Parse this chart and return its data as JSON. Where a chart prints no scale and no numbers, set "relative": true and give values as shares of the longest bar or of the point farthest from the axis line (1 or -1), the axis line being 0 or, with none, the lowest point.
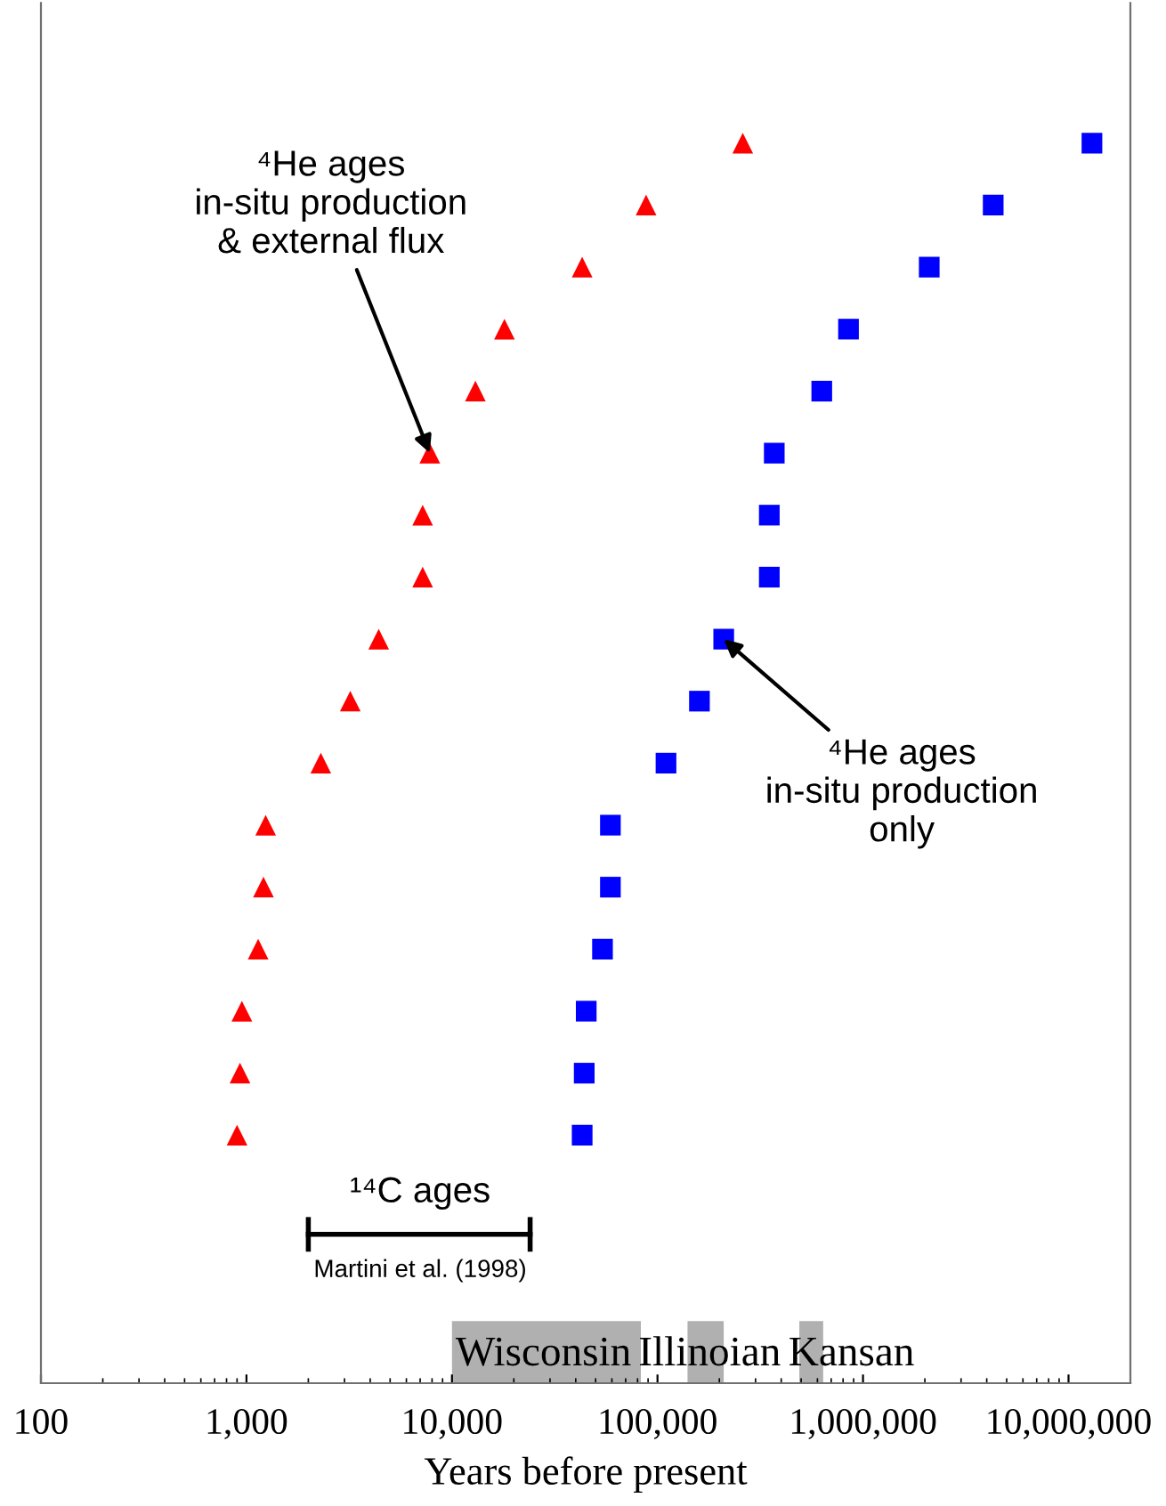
{
  "chart_data": {
    "type": "scatter",
    "relative": true,
    "log": "x",
    "xlabel": "Years before present",
    "xlim": [
      100,
      20000000
    ],
    "xticks": [
      {
        "value": 100,
        "label": "100"
      },
      {
        "value": 1000,
        "label": "1,000"
      },
      {
        "value": 10000,
        "label": "10,000"
      },
      {
        "value": 100000,
        "label": "100,000"
      },
      {
        "value": 1000000,
        "label": "1,000,000"
      },
      {
        "value": 10000000,
        "label": "10,000,000"
      }
    ],
    "tick_labels": "x",
    "grid": false,
    "legend": false,
    "series": [
      {
        "color": "#ff0000",
        "marker": "triangle",
        "x": [
          900,
          930,
          950,
          1140,
          1210,
          1240,
          2300,
          3200,
          4400,
          7200,
          7200,
          7800,
          13000,
          18000,
          43000,
          88000,
          260000
        ],
        "values": [
          0.2,
          0.25,
          0.3,
          0.35,
          0.4,
          0.45,
          0.5,
          0.55,
          0.6,
          0.65,
          0.7,
          0.75,
          0.8,
          0.85,
          0.9,
          0.95,
          1.0
        ]
      },
      {
        "color": "#0000ff",
        "marker": "square",
        "x": [
          43000,
          44000,
          45000,
          54000,
          59000,
          59000,
          110000,
          160000,
          210000,
          350000,
          350000,
          370000,
          630000,
          850000,
          2100000,
          4300000,
          13000000
        ],
        "values": [
          0.2,
          0.25,
          0.3,
          0.35,
          0.4,
          0.45,
          0.5,
          0.55,
          0.6,
          0.65,
          0.7,
          0.75,
          0.8,
          0.85,
          0.9,
          0.95,
          1.0
        ]
      },
      {
        "type": "line",
        "color": "#000000",
        "marker": "none",
        "x": [
          2000,
          24000
        ],
        "values": [
          0.12,
          0.12
        ]
      }
    ],
    "bands": [
      {
        "axis": "x",
        "from": 10000,
        "to": 83000,
        "label": "Wisconsin",
        "color": "#b0b0b0"
      },
      {
        "axis": "x",
        "from": 140000,
        "to": 210000,
        "label": "Illinoian",
        "color": "#b0b0b0"
      },
      {
        "axis": "x",
        "from": 490000,
        "to": 640000,
        "label": "Kansan",
        "color": "#b0b0b0"
      }
    ],
    "annotations": [
      {
        "text": "⁴He ages\nin-situ production\n& external flux",
        "x": 7800,
        "y": 0.75
      },
      {
        "text": "⁴He ages\nin-situ production\nonly",
        "x": 210000,
        "y": 0.6
      },
      {
        "text": "¹⁴C ages",
        "x": 7000,
        "y": 0.12
      },
      {
        "text": "Martini et al. (1998)",
        "x": 7000,
        "y": 0.12
      }
    ]
  }
}
